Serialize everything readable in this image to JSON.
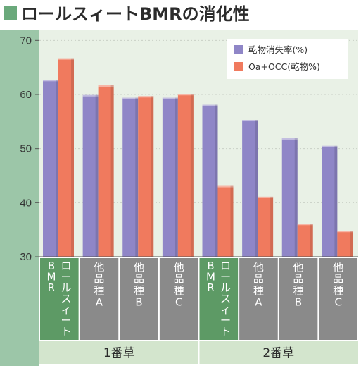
{
  "title": "ロールスィートBMRの消化性",
  "colors": {
    "title_square": "#6aa97b",
    "axis_band": "#9cc6a8",
    "plot_bg": "#e9f1e6",
    "dry_matter": "#8f86c7",
    "oa_occ": "#f07a5e",
    "cat_bmr": "#5d9a65",
    "cat_other": "#8a8a8a",
    "group_band": "#d3e5cd"
  },
  "chart_data": {
    "type": "bar",
    "title": "ロールスィートBMRの消化性",
    "ylim": [
      30,
      72
    ],
    "yticks": [
      30,
      40,
      50,
      60,
      70
    ],
    "grid": true,
    "legend_position": "top-right",
    "categories": [
      "BMRロールスィート",
      "他品種A",
      "他品種B",
      "他品種C",
      "BMRロールスィート",
      "他品種A",
      "他品種B",
      "他品種C"
    ],
    "category_labels": [
      [
        "B",
        "M",
        "R"
      ],
      [
        "ロ",
        "ー",
        "ル",
        "ス",
        "ィ",
        "ー",
        "ト"
      ]
    ],
    "other_labels": [
      [
        "他",
        "品",
        "種",
        "A"
      ],
      [
        "他",
        "品",
        "種",
        "B"
      ],
      [
        "他",
        "品",
        "種",
        "C"
      ]
    ],
    "groups": [
      {
        "label": "1番草",
        "categories": [
          0,
          1,
          2,
          3
        ]
      },
      {
        "label": "2番草",
        "categories": [
          4,
          5,
          6,
          7
        ]
      }
    ],
    "series": [
      {
        "name": "乾物消失率(%)",
        "values": [
          62.7,
          59.9,
          59.4,
          59.4,
          58.1,
          55.3,
          51.9,
          50.5
        ]
      },
      {
        "name": "Oa+OCC(乾物%)",
        "values": [
          66.7,
          61.7,
          59.7,
          60.1,
          43.1,
          41.1,
          36.1,
          34.8
        ]
      }
    ]
  }
}
